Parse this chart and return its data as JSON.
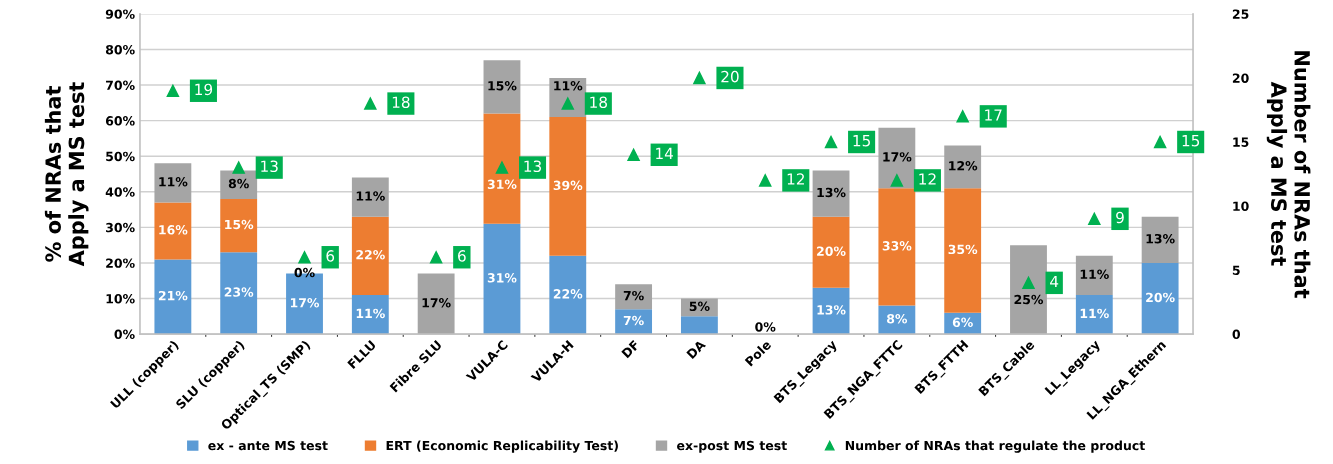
{
  "chart_data": {
    "type": "bar",
    "stacked": true,
    "ylabel": "% of NRAs that\nApply a MS test",
    "y2label": "Number of NRAs that\nApply a MS test",
    "categories": [
      "ULL (copper)",
      "SLU (copper)",
      "Optical_TS (SMP)",
      "FLLU",
      "Fibre SLU",
      "VULA-C",
      "VULA-H",
      "DF",
      "DA",
      "Pole",
      "BTS_Legacy",
      "BTS_NGA_FTTC",
      "BTS_FTTH",
      "BTS_Cable",
      "LL_Legacy",
      "LL_NGA_Ethern"
    ],
    "series": [
      {
        "name": "ex - ante MS test",
        "color": "#5b9bd5",
        "values": [
          21,
          23,
          17,
          11,
          0,
          31,
          22,
          7,
          5,
          0,
          13,
          8,
          6,
          0,
          11,
          20
        ],
        "value_labels": [
          "21%",
          "23%",
          "17%",
          "11%",
          null,
          "31%",
          "22%",
          "7%",
          null,
          null,
          "13%",
          "8%",
          "6%",
          null,
          "11%",
          "20%"
        ]
      },
      {
        "name": "ERT (Economic Replicability Test)",
        "color": "#ed7d31",
        "values": [
          16,
          15,
          0,
          22,
          0,
          31,
          39,
          0,
          0,
          0,
          20,
          33,
          35,
          0,
          0,
          0
        ],
        "value_labels": [
          "16%",
          "15%",
          null,
          "22%",
          null,
          "31%",
          "39%",
          null,
          null,
          null,
          "20%",
          "33%",
          "35%",
          null,
          null,
          null
        ]
      },
      {
        "name": "ex-post MS test",
        "color": "#a5a5a5",
        "values": [
          11,
          8,
          0,
          11,
          17,
          15,
          11,
          7,
          5,
          0,
          13,
          17,
          12,
          25,
          11,
          13
        ],
        "value_labels": [
          "11%",
          "8%",
          "0%",
          "11%",
          "17%",
          "15%",
          "11%",
          "7%",
          "5%",
          "0%",
          "13%",
          "17%",
          "12%",
          "25%",
          "11%",
          "13%"
        ]
      },
      {
        "name": "Number of NRAs that regulate the product",
        "type": "scatter",
        "axis": "y2",
        "marker": "triangle",
        "color": "#00b050",
        "values": [
          19,
          13,
          6,
          18,
          6,
          13,
          18,
          14,
          20,
          12,
          15,
          12,
          17,
          4,
          9,
          15
        ],
        "value_labels": [
          "19",
          "13",
          "6",
          "18",
          "6",
          "13",
          "18",
          "14",
          "20",
          "12",
          "15",
          "12",
          "17",
          "4",
          "9",
          "15"
        ]
      }
    ],
    "ylim": [
      0,
      90
    ],
    "yticks": [
      {
        "value": 0,
        "label": "0%"
      },
      {
        "value": 10,
        "label": "10%"
      },
      {
        "value": 20,
        "label": "20%"
      },
      {
        "value": 30,
        "label": "30%"
      },
      {
        "value": 40,
        "label": "40%"
      },
      {
        "value": 50,
        "label": "50%"
      },
      {
        "value": 60,
        "label": "60%"
      },
      {
        "value": 70,
        "label": "70%"
      },
      {
        "value": 80,
        "label": "80%"
      },
      {
        "value": 90,
        "label": "90%"
      }
    ],
    "y2lim": [
      0,
      25
    ],
    "y2ticks": [
      0,
      5,
      10,
      15,
      20,
      25
    ],
    "grid": "y",
    "legend": "bottom"
  }
}
